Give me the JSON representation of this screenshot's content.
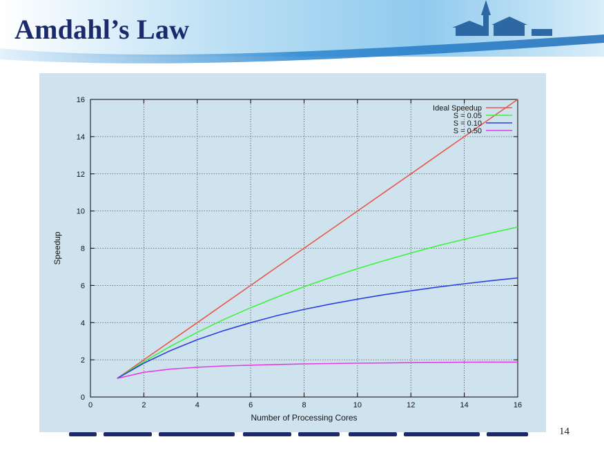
{
  "slide": {
    "title": "Amdahl’s Law",
    "slide_number": "14"
  },
  "colors": {
    "title_text": "#1b2a6b",
    "header_gradient_start": "#1f78c8",
    "header_gradient_end": "#d9eef9",
    "plot_panel": "#cfe3ef",
    "ideal": "#e8574a",
    "s005": "#3cf23c",
    "s010": "#2b3ee0",
    "s050": "#e63ce6"
  },
  "chart_data": {
    "type": "line",
    "title": "",
    "xlabel": "Number of Processing Cores",
    "ylabel": "Speedup",
    "xlim": [
      0,
      16
    ],
    "ylim": [
      0,
      16
    ],
    "xticks": [
      0,
      2,
      4,
      6,
      8,
      10,
      12,
      14,
      16
    ],
    "yticks": [
      0,
      2,
      4,
      6,
      8,
      10,
      12,
      14,
      16
    ],
    "grid": true,
    "legend_position": "top-right",
    "x": [
      1,
      2,
      3,
      4,
      5,
      6,
      7,
      8,
      9,
      10,
      11,
      12,
      13,
      14,
      15,
      16
    ],
    "series": [
      {
        "name": "Ideal Speedup",
        "color": "#e8574a",
        "values": [
          1,
          2,
          3,
          4,
          5,
          6,
          7,
          8,
          9,
          10,
          11,
          12,
          13,
          14,
          15,
          16
        ]
      },
      {
        "name": "S = 0.05",
        "color": "#3cf23c",
        "values": [
          1.0,
          1.9,
          2.73,
          3.48,
          4.17,
          4.8,
          5.38,
          5.93,
          6.43,
          6.9,
          7.33,
          7.74,
          8.13,
          8.48,
          8.82,
          9.14
        ]
      },
      {
        "name": "S = 0.10",
        "color": "#2b3ee0",
        "values": [
          1.0,
          1.82,
          2.5,
          3.08,
          3.57,
          4.0,
          4.38,
          4.71,
          5.0,
          5.26,
          5.5,
          5.71,
          5.91,
          6.09,
          6.25,
          6.4
        ]
      },
      {
        "name": "S = 0.50",
        "color": "#e63ce6",
        "values": [
          1.0,
          1.33,
          1.5,
          1.6,
          1.67,
          1.71,
          1.75,
          1.78,
          1.8,
          1.82,
          1.83,
          1.85,
          1.86,
          1.87,
          1.88,
          1.88
        ]
      }
    ]
  }
}
